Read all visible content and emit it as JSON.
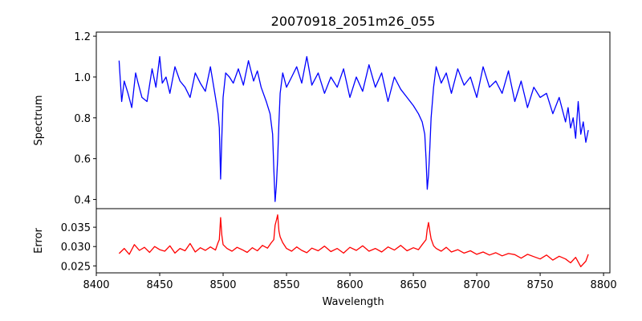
{
  "chart_data": {
    "type": "line",
    "title": "20070918_2051m26_055",
    "xlabel": "Wavelength",
    "xlim": [
      8400,
      8805
    ],
    "x_ticks": [
      8400,
      8450,
      8500,
      8550,
      8600,
      8650,
      8700,
      8750,
      8800
    ],
    "grid": false,
    "panels": [
      {
        "ylabel": "Spectrum",
        "ylim": [
          0.355,
          1.22
        ],
        "y_ticks": [
          0.4,
          0.6,
          0.8,
          1.0,
          1.2
        ],
        "y_tick_labels": [
          "0.4",
          "0.6",
          "0.8",
          "1.0",
          "1.2"
        ],
        "series": [
          {
            "color": "#0000ff",
            "x": [
              8418,
              8420,
              8422,
              8425,
              8428,
              8431,
              8433,
              8436,
              8440,
              8444,
              8447,
              8450,
              8452,
              8455,
              8458,
              8462,
              8466,
              8470,
              8474,
              8478,
              8482,
              8486,
              8490,
              8494,
              8496,
              8497,
              8498,
              8499,
              8500,
              8502,
              8505,
              8508,
              8512,
              8516,
              8520,
              8524,
              8527,
              8530,
              8534,
              8537,
              8539,
              8540,
              8541,
              8542,
              8543,
              8544,
              8545,
              8547,
              8550,
              8554,
              8558,
              8562,
              8566,
              8570,
              8575,
              8580,
              8585,
              8590,
              8595,
              8600,
              8605,
              8610,
              8615,
              8620,
              8625,
              8630,
              8635,
              8640,
              8645,
              8650,
              8654,
              8657,
              8659,
              8660,
              8661,
              8662,
              8663,
              8664,
              8666,
              8668,
              8672,
              8676,
              8680,
              8685,
              8690,
              8695,
              8700,
              8705,
              8710,
              8715,
              8720,
              8725,
              8730,
              8735,
              8740,
              8745,
              8750,
              8755,
              8760,
              8765,
              8770,
              8772,
              8774,
              8776,
              8778,
              8780,
              8782,
              8784,
              8786,
              8788
            ],
            "y": [
              1.08,
              0.88,
              0.98,
              0.92,
              0.85,
              1.02,
              0.97,
              0.9,
              0.88,
              1.04,
              0.95,
              1.1,
              0.97,
              1.0,
              0.92,
              1.05,
              0.98,
              0.95,
              0.9,
              1.02,
              0.97,
              0.93,
              1.05,
              0.9,
              0.82,
              0.75,
              0.5,
              0.7,
              0.9,
              1.02,
              1.0,
              0.97,
              1.04,
              0.96,
              1.08,
              0.98,
              1.03,
              0.95,
              0.88,
              0.82,
              0.72,
              0.55,
              0.39,
              0.47,
              0.6,
              0.78,
              0.92,
              1.02,
              0.95,
              1.0,
              1.05,
              0.97,
              1.1,
              0.96,
              1.02,
              0.92,
              1.0,
              0.95,
              1.04,
              0.9,
              1.0,
              0.93,
              1.06,
              0.95,
              1.02,
              0.88,
              1.0,
              0.94,
              0.9,
              0.86,
              0.82,
              0.78,
              0.72,
              0.6,
              0.45,
              0.52,
              0.65,
              0.8,
              0.95,
              1.05,
              0.97,
              1.02,
              0.92,
              1.04,
              0.96,
              1.0,
              0.9,
              1.05,
              0.95,
              0.98,
              0.92,
              1.03,
              0.88,
              0.98,
              0.85,
              0.95,
              0.9,
              0.92,
              0.82,
              0.9,
              0.78,
              0.85,
              0.75,
              0.8,
              0.7,
              0.88,
              0.72,
              0.78,
              0.68,
              0.74
            ]
          }
        ]
      },
      {
        "ylabel": "Error",
        "ylim": [
          0.0232,
          0.0398
        ],
        "y_ticks": [
          0.025,
          0.03,
          0.035
        ],
        "y_tick_labels": [
          "0.025",
          "0.030",
          "0.035"
        ],
        "series": [
          {
            "color": "#ff0000",
            "x": [
              8418,
              8422,
              8426,
              8430,
              8434,
              8438,
              8442,
              8446,
              8450,
              8454,
              8458,
              8462,
              8466,
              8470,
              8474,
              8478,
              8482,
              8486,
              8490,
              8494,
              8496,
              8497,
              8498,
              8499,
              8500,
              8503,
              8507,
              8511,
              8515,
              8519,
              8523,
              8527,
              8531,
              8535,
              8538,
              8540,
              8541,
              8542,
              8543,
              8544,
              8545,
              8547,
              8550,
              8554,
              8558,
              8562,
              8566,
              8570,
              8575,
              8580,
              8585,
              8590,
              8595,
              8600,
              8605,
              8610,
              8615,
              8620,
              8625,
              8630,
              8635,
              8640,
              8645,
              8650,
              8654,
              8657,
              8660,
              8661,
              8662,
              8663,
              8664,
              8666,
              8668,
              8672,
              8676,
              8680,
              8685,
              8690,
              8695,
              8700,
              8705,
              8710,
              8715,
              8720,
              8725,
              8730,
              8735,
              8740,
              8745,
              8750,
              8755,
              8760,
              8765,
              8770,
              8774,
              8778,
              8782,
              8786,
              8788
            ],
            "y": [
              0.0282,
              0.0295,
              0.028,
              0.0305,
              0.029,
              0.0298,
              0.0285,
              0.03,
              0.0292,
              0.0288,
              0.0302,
              0.0283,
              0.0295,
              0.0289,
              0.0308,
              0.0286,
              0.0297,
              0.029,
              0.0299,
              0.0291,
              0.031,
              0.0318,
              0.0375,
              0.033,
              0.0305,
              0.0295,
              0.0288,
              0.0298,
              0.0292,
              0.0285,
              0.0297,
              0.0289,
              0.0303,
              0.0296,
              0.031,
              0.0318,
              0.0355,
              0.0368,
              0.0382,
              0.034,
              0.0325,
              0.031,
              0.0295,
              0.0288,
              0.0299,
              0.029,
              0.0284,
              0.0296,
              0.0289,
              0.0301,
              0.0287,
              0.0295,
              0.0283,
              0.0298,
              0.029,
              0.0302,
              0.0288,
              0.0295,
              0.0286,
              0.0299,
              0.0291,
              0.0303,
              0.0289,
              0.0297,
              0.0292,
              0.0305,
              0.0318,
              0.0345,
              0.0362,
              0.034,
              0.032,
              0.0302,
              0.0295,
              0.0288,
              0.0298,
              0.0286,
              0.0292,
              0.0283,
              0.0289,
              0.028,
              0.0286,
              0.0278,
              0.0284,
              0.0276,
              0.0282,
              0.0279,
              0.027,
              0.028,
              0.0274,
              0.0268,
              0.0278,
              0.0265,
              0.0275,
              0.0268,
              0.0258,
              0.0272,
              0.0248,
              0.0262,
              0.028
            ]
          }
        ]
      }
    ]
  }
}
